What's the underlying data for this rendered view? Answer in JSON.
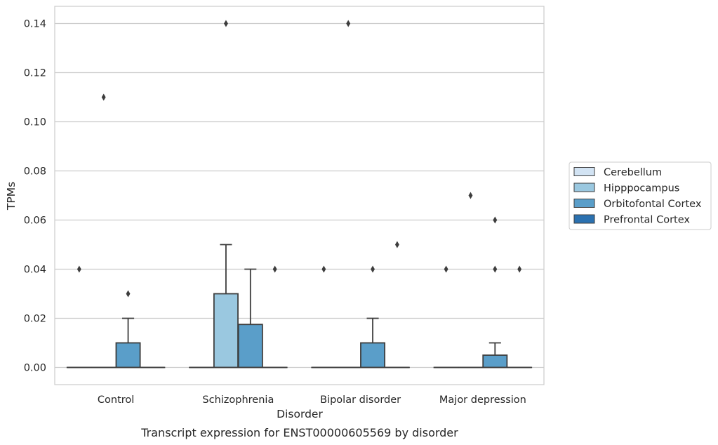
{
  "chart_data": {
    "type": "box",
    "caption": "Transcript expression for ENST00000605569 by disorder",
    "xlabel": "Disorder",
    "ylabel": "TPMs",
    "ylim": [
      -0.007,
      0.147
    ],
    "yticks": [
      0.0,
      0.02,
      0.04,
      0.06,
      0.08,
      0.1,
      0.12,
      0.14
    ],
    "ytick_labels": [
      "0.00",
      "0.02",
      "0.04",
      "0.06",
      "0.08",
      "0.10",
      "0.12",
      "0.14"
    ],
    "grid": true,
    "legend_position": "right",
    "categories": [
      "Control",
      "Schizophrenia",
      "Bipolar disorder",
      "Major depression"
    ],
    "series": [
      {
        "name": "Cerebellum",
        "color": "#d2e3f3",
        "boxes": [
          {
            "q1": 0,
            "median": 0,
            "q3": 0,
            "whisker_low": 0,
            "whisker_high": 0,
            "outliers": [
              0.04
            ]
          },
          {
            "q1": 0,
            "median": 0,
            "q3": 0,
            "whisker_low": 0,
            "whisker_high": 0,
            "outliers": []
          },
          {
            "q1": 0,
            "median": 0,
            "q3": 0,
            "whisker_low": 0,
            "whisker_high": 0,
            "outliers": [
              0.04
            ]
          },
          {
            "q1": 0,
            "median": 0,
            "q3": 0,
            "whisker_low": 0,
            "whisker_high": 0,
            "outliers": [
              0.04
            ]
          }
        ]
      },
      {
        "name": "Hipppocampus",
        "color": "#9ac8e0",
        "boxes": [
          {
            "q1": 0,
            "median": 0,
            "q3": 0,
            "whisker_low": 0,
            "whisker_high": 0,
            "outliers": [
              0.11
            ]
          },
          {
            "q1": 0,
            "median": 0,
            "q3": 0.03,
            "whisker_low": 0,
            "whisker_high": 0.05,
            "outliers": [
              0.14
            ]
          },
          {
            "q1": 0,
            "median": 0,
            "q3": 0,
            "whisker_low": 0,
            "whisker_high": 0,
            "outliers": [
              0.14
            ]
          },
          {
            "q1": 0,
            "median": 0,
            "q3": 0,
            "whisker_low": 0,
            "whisker_high": 0,
            "outliers": [
              0.07
            ]
          }
        ]
      },
      {
        "name": "Orbitofontal Cortex",
        "color": "#5a9ec9",
        "boxes": [
          {
            "q1": 0,
            "median": 0,
            "q3": 0.01,
            "whisker_low": 0,
            "whisker_high": 0.02,
            "outliers": [
              0.03
            ]
          },
          {
            "q1": 0,
            "median": 0,
            "q3": 0.0175,
            "whisker_low": 0,
            "whisker_high": 0.04,
            "outliers": []
          },
          {
            "q1": 0,
            "median": 0,
            "q3": 0.01,
            "whisker_low": 0,
            "whisker_high": 0.02,
            "outliers": [
              0.04
            ]
          },
          {
            "q1": 0,
            "median": 0,
            "q3": 0.005,
            "whisker_low": 0,
            "whisker_high": 0.01,
            "outliers": [
              0.06,
              0.04
            ]
          }
        ]
      },
      {
        "name": "Prefrontal Cortex",
        "color": "#2b71b0",
        "boxes": [
          {
            "q1": 0,
            "median": 0,
            "q3": 0,
            "whisker_low": 0,
            "whisker_high": 0,
            "outliers": []
          },
          {
            "q1": 0,
            "median": 0,
            "q3": 0,
            "whisker_low": 0,
            "whisker_high": 0,
            "outliers": [
              0.04
            ]
          },
          {
            "q1": 0,
            "median": 0,
            "q3": 0,
            "whisker_low": 0,
            "whisker_high": 0,
            "outliers": [
              0.05
            ]
          },
          {
            "q1": 0,
            "median": 0,
            "q3": 0,
            "whisker_low": 0,
            "whisker_high": 0,
            "outliers": [
              0.04
            ]
          }
        ]
      }
    ]
  }
}
